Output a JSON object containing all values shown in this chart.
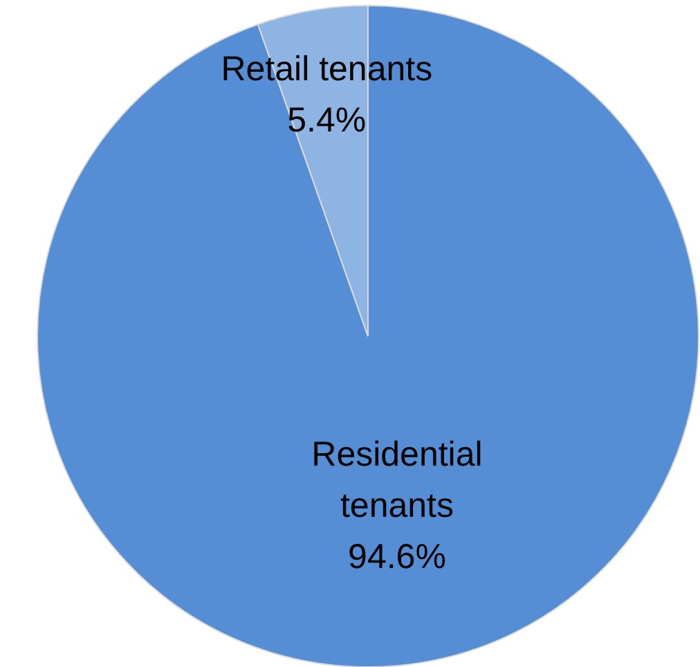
{
  "chart_data": {
    "type": "pie",
    "categories": [
      "Residential tenants",
      "Retail tenants"
    ],
    "values": [
      94.6,
      5.4
    ],
    "colors": [
      "#558ed5",
      "#8eb4e3"
    ],
    "value_labels": [
      "94.6%",
      "5.4%"
    ]
  }
}
